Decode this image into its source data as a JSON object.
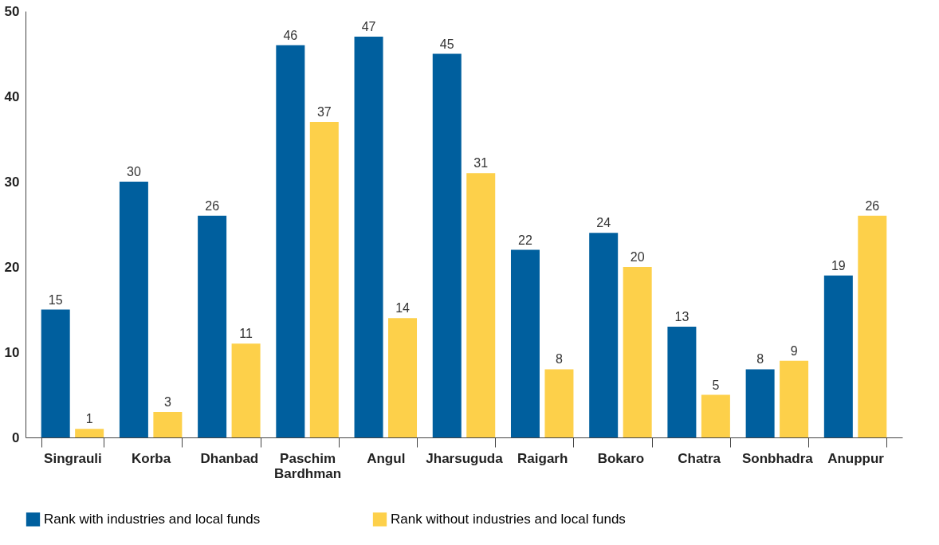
{
  "chart_data": {
    "type": "bar",
    "categories": [
      "Singrauli",
      "Korba",
      "Dhanbad",
      "Paschim Bardhman",
      "Angul",
      "Jharsuguda",
      "Raigarh",
      "Bokaro",
      "Chatra",
      "Sonbhadra",
      "Anuppur"
    ],
    "series": [
      {
        "name": "Rank with industries and local funds",
        "color": "#005f9e",
        "values": [
          15,
          30,
          26,
          46,
          47,
          45,
          22,
          24,
          13,
          8,
          19
        ]
      },
      {
        "name": "Rank without industries and local funds",
        "color": "#fdd04a",
        "values": [
          1,
          3,
          11,
          37,
          14,
          31,
          8,
          20,
          5,
          9,
          26
        ]
      }
    ],
    "ylim": [
      0,
      50
    ],
    "yticks": [
      0,
      10,
      20,
      30,
      40,
      50
    ],
    "grid": false,
    "legend": "bottom",
    "data_labels": true
  }
}
